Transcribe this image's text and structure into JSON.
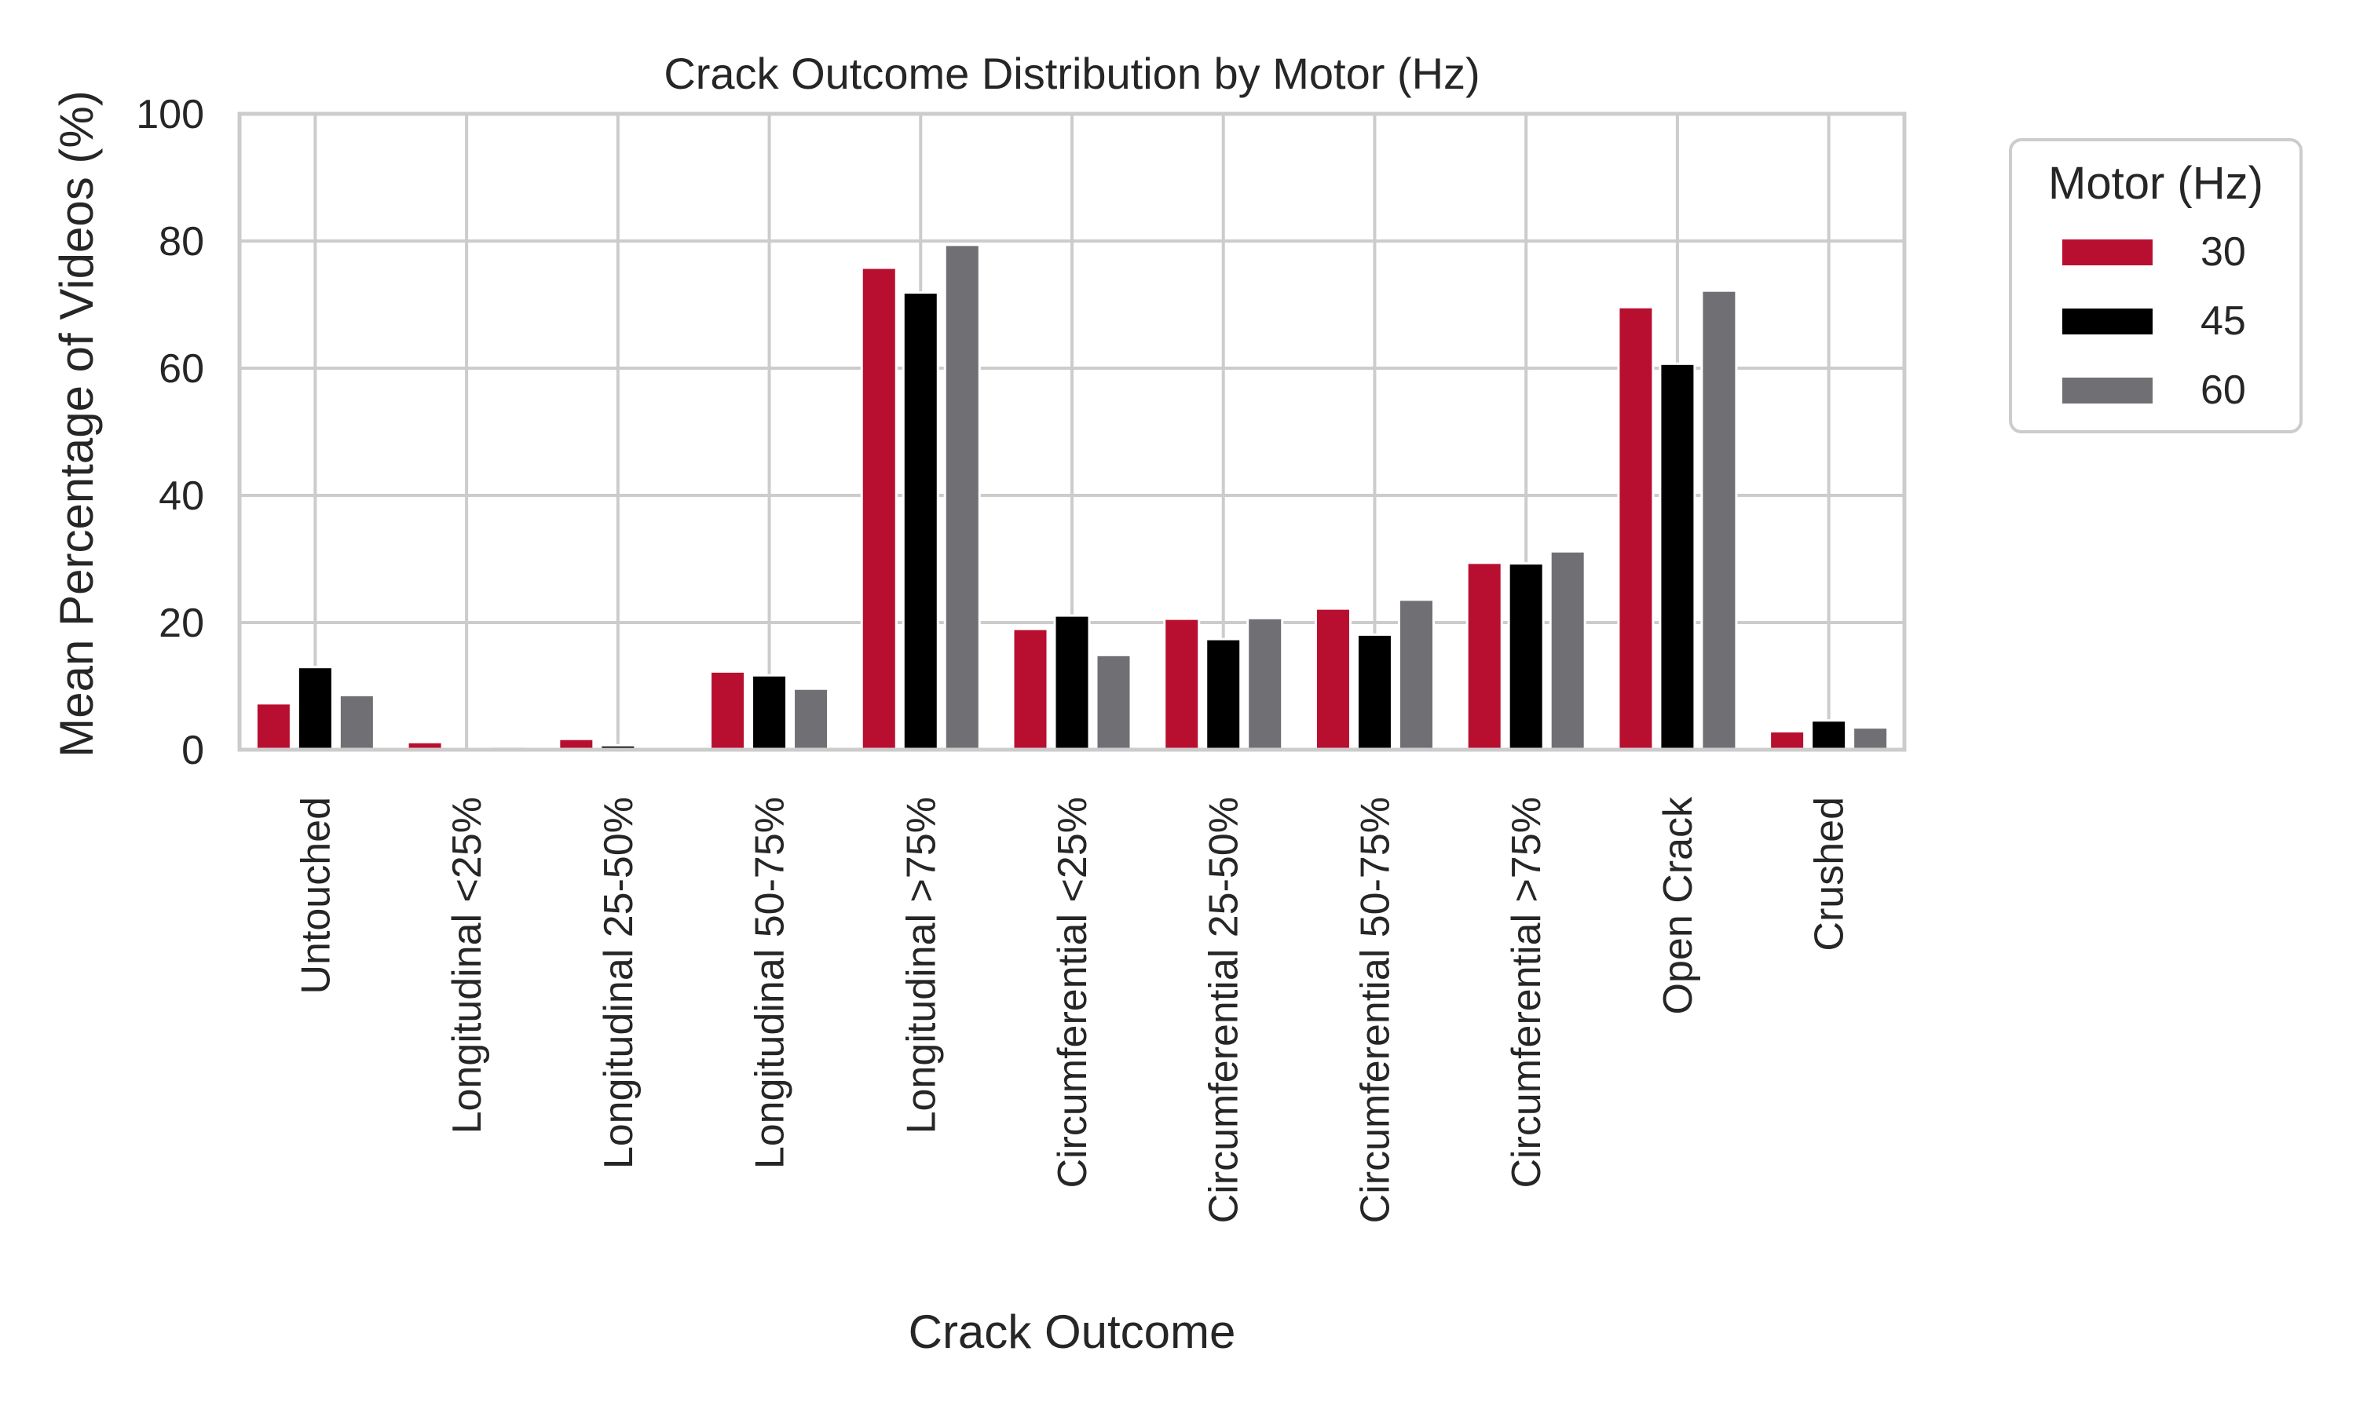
{
  "chart_data": {
    "type": "bar",
    "title": "Crack Outcome Distribution by Motor (Hz)",
    "xlabel": "Crack Outcome",
    "ylabel": "Mean Percentage of Videos (%)",
    "ylim": [
      0,
      100
    ],
    "yticks": [
      "0",
      "20",
      "40",
      "60",
      "80",
      "100"
    ],
    "grid": true,
    "legend": {
      "title": "Motor (Hz)",
      "placement": "outside-right-top"
    },
    "categories": [
      "Untouched",
      "Longitudinal <25%",
      "Longitudinal 25-50%",
      "Longitudinal 50-75%",
      "Longitudinal >75%",
      "Circumferential <25%",
      "Circumferential 25-50%",
      "Circumferential 50-75%",
      "Circumferential >75%",
      "Open Crack",
      "Crushed"
    ],
    "series": [
      {
        "name": "30",
        "color": "#b80f30",
        "values": [
          7.3,
          1.2,
          1.7,
          12.3,
          75.8,
          19.0,
          20.6,
          22.2,
          29.4,
          69.6,
          2.9
        ]
      },
      {
        "name": "45",
        "color": "#000000",
        "values": [
          13.0,
          0.1,
          0.7,
          11.7,
          71.9,
          21.1,
          17.4,
          18.1,
          29.3,
          60.7,
          4.6
        ]
      },
      {
        "name": "60",
        "color": "#707074",
        "values": [
          8.6,
          0.5,
          0.2,
          9.6,
          79.4,
          14.9,
          20.7,
          23.6,
          31.2,
          72.2,
          3.5
        ]
      }
    ]
  }
}
